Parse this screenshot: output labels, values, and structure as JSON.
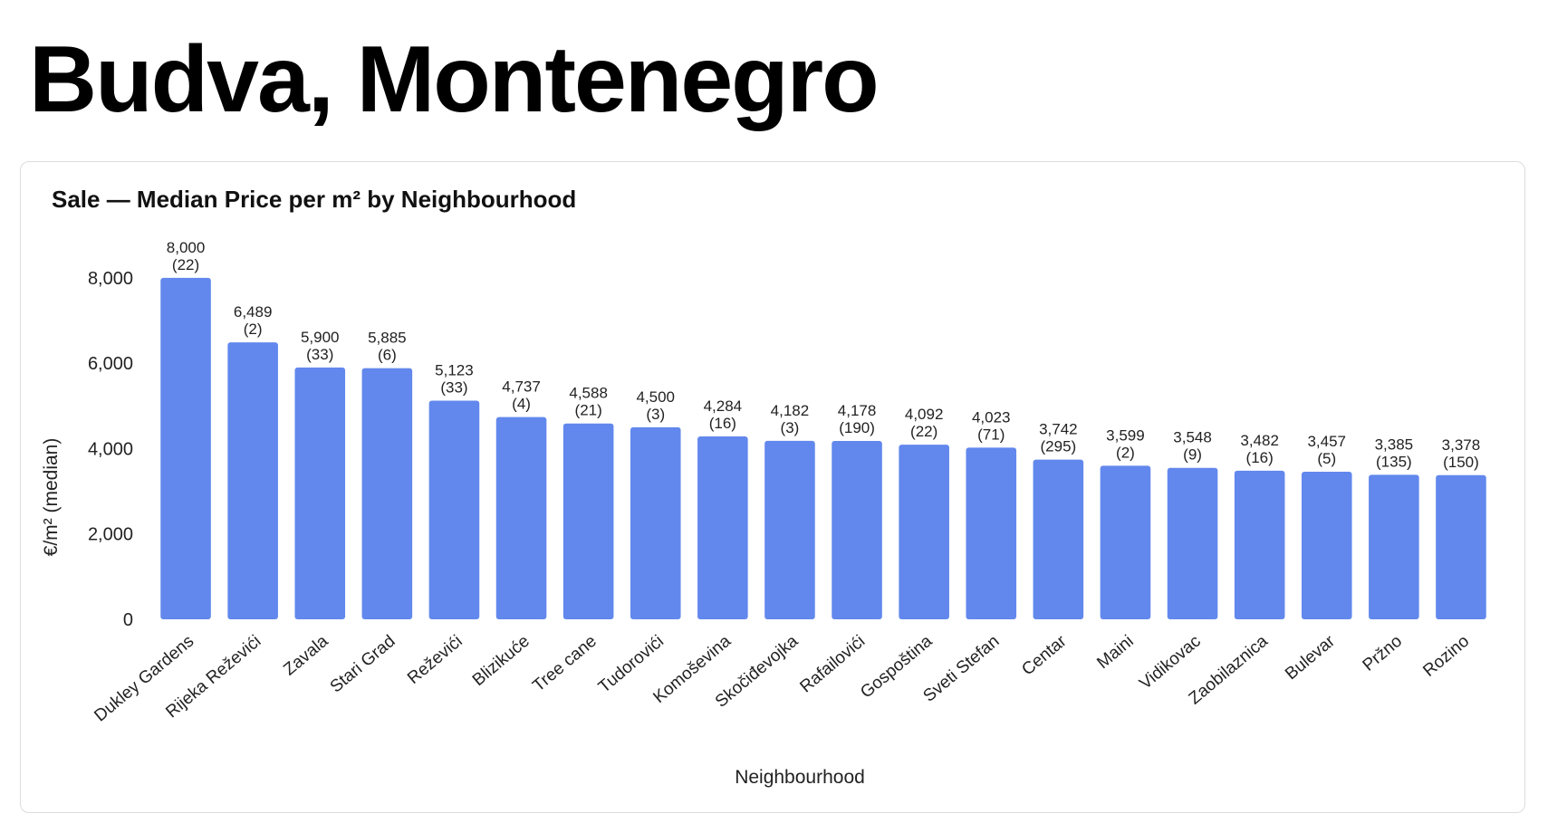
{
  "page": {
    "title": "Budva, Montenegro"
  },
  "chart_data": {
    "type": "bar",
    "title": "Sale — Median Price per m² by Neighbourhood",
    "xlabel": "Neighbourhood",
    "ylabel": "€/m² (median)",
    "ylim": [
      0,
      8400
    ],
    "yticks": [
      0,
      2000,
      4000,
      6000,
      8000
    ],
    "ytick_labels": [
      "0",
      "2,000",
      "4,000",
      "6,000",
      "8,000"
    ],
    "grid": false,
    "legend": "none",
    "bar_color": "#6288ed",
    "categories": [
      "Dukley Gardens",
      "Rijeka Reževići",
      "Zavala",
      "Stari Grad",
      "Reževići",
      "Blizikuće",
      "Tree cane",
      "Tudorovići",
      "Komoševina",
      "Skočiđevojka",
      "Rafailovići",
      "Gospoština",
      "Sveti Stefan",
      "Centar",
      "Maini",
      "Vidikovac",
      "Zaobilaznica",
      "Bulevar",
      "Pržno",
      "Rozino"
    ],
    "values": [
      8000,
      6489,
      5900,
      5885,
      5123,
      4737,
      4588,
      4500,
      4284,
      4182,
      4178,
      4092,
      4023,
      3742,
      3599,
      3548,
      3482,
      3457,
      3385,
      3378
    ],
    "value_labels": [
      "8,000",
      "6,489",
      "5,900",
      "5,885",
      "5,123",
      "4,737",
      "4,588",
      "4,500",
      "4,284",
      "4,182",
      "4,178",
      "4,092",
      "4,023",
      "3,742",
      "3,599",
      "3,548",
      "3,482",
      "3,457",
      "3,385",
      "3,378"
    ],
    "counts": [
      "(22)",
      "(2)",
      "(33)",
      "(6)",
      "(33)",
      "(4)",
      "(21)",
      "(3)",
      "(16)",
      "(3)",
      "(190)",
      "(22)",
      "(71)",
      "(295)",
      "(2)",
      "(9)",
      "(16)",
      "(5)",
      "(135)",
      "(150)"
    ]
  }
}
